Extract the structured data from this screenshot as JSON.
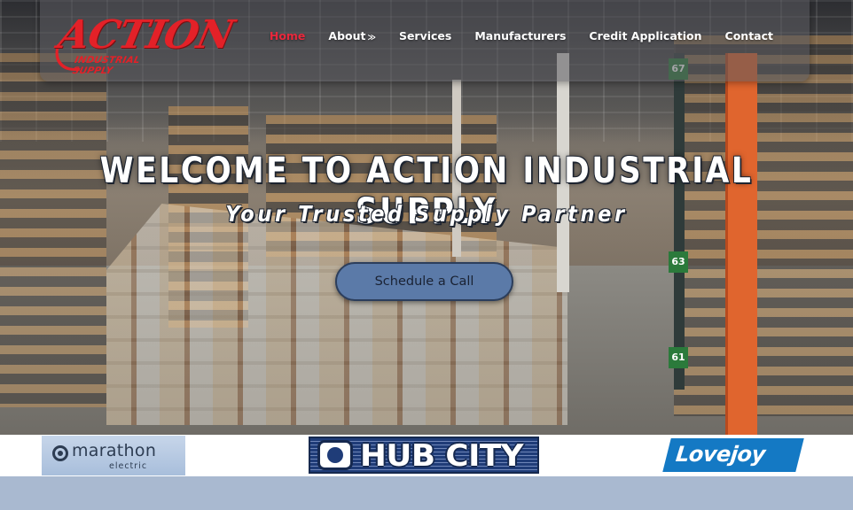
{
  "header": {
    "logo": {
      "word": "ACTION",
      "subtitle": "INDUSTRIAL SUPPLY",
      "color": "#e32128"
    },
    "nav": [
      {
        "label": "Home",
        "active": true
      },
      {
        "label": "About",
        "has_dropdown": true
      },
      {
        "label": "Services"
      },
      {
        "label": "Manufacturers"
      },
      {
        "label": "Credit Application"
      },
      {
        "label": "Contact"
      }
    ],
    "active_color": "#e8283c"
  },
  "hero": {
    "title": "WELCOME TO ACTION INDUSTRIAL SUPPLY",
    "subtitle": "Your Trusted Supply Partner",
    "cta_label": "Schedule a Call",
    "cta_color": "#5b7aa8",
    "aisle_signs": [
      "67",
      "63",
      "61"
    ]
  },
  "brands": [
    {
      "name": "marathon",
      "sub": "electric"
    },
    {
      "name": "HUB CITY"
    },
    {
      "name": "Lovejoy"
    }
  ]
}
